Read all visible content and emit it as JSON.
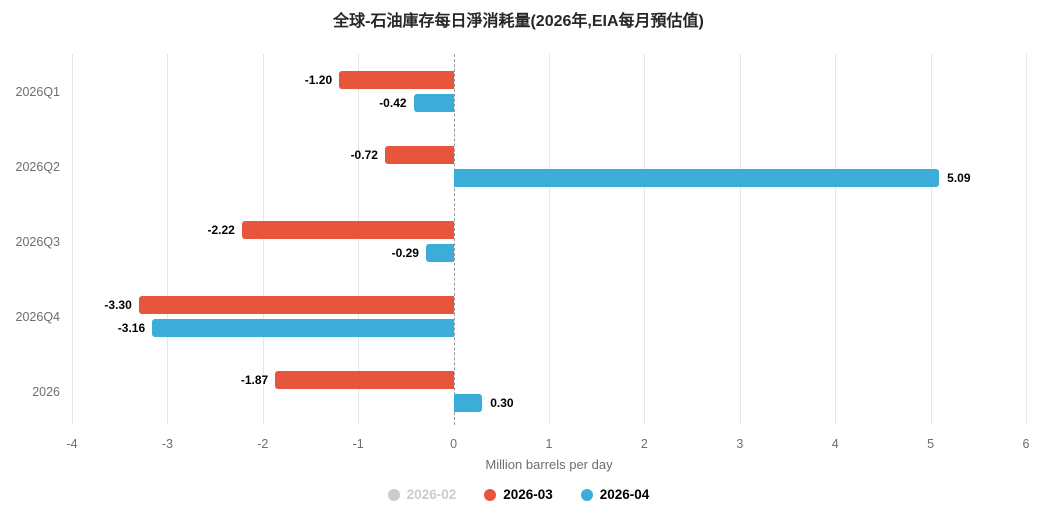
{
  "title": "全球-石油庫存每日淨消耗量(2026年,EIA每月預估值)",
  "chart_data": {
    "type": "bar",
    "orientation": "horizontal",
    "title": "全球-石油庫存每日淨消耗量(2026年,EIA每月預估值)",
    "xlabel": "Million barrels per day",
    "xlim": [
      -4,
      6
    ],
    "xticks": [
      -4,
      -3,
      -2,
      -1,
      0,
      1,
      2,
      3,
      4,
      5,
      6
    ],
    "grid": true,
    "zero_line_style": "dashed",
    "legend_position": "bottom",
    "categories": [
      "2026Q1",
      "2026Q2",
      "2026Q3",
      "2026Q4",
      "2026"
    ],
    "series": [
      {
        "name": "2026-02",
        "color": "#cccccc",
        "visible": false,
        "values": []
      },
      {
        "name": "2026-03",
        "color": "#e6553c",
        "visible": true,
        "values": [
          -1.2,
          -0.72,
          -2.22,
          -3.3,
          -1.87
        ]
      },
      {
        "name": "2026-04",
        "color": "#3cacd8",
        "visible": true,
        "values": [
          -0.42,
          5.09,
          -0.29,
          -3.16,
          0.3
        ]
      }
    ],
    "value_label_decimals": 2
  },
  "colors": {
    "grid": "#e6e6e6",
    "zero_line": "#999999",
    "axis_text": "#6e6e6e",
    "value_label": "#000000",
    "title": "#26262b",
    "legend_disabled": "#cccccc"
  }
}
